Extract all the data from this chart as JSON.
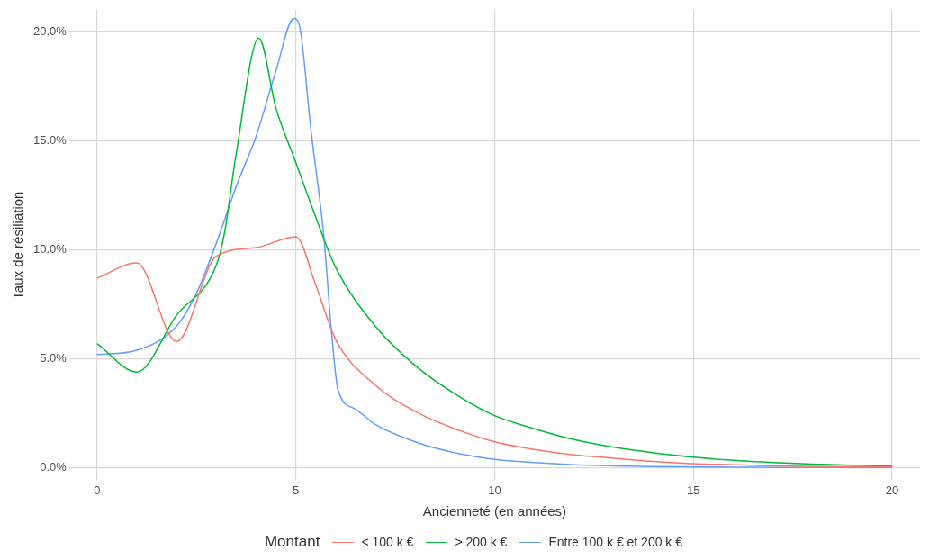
{
  "chart_data": {
    "type": "line",
    "xlabel": "Ancienneté (en années)",
    "ylabel": "Taux de résiliation",
    "legend_title": "Montant",
    "legend": "bottom",
    "grid": true,
    "marker": "none",
    "line_style": "solid",
    "xlim": [
      -0.7,
      20.7
    ],
    "xticks": [
      0,
      5,
      10,
      15,
      20
    ],
    "ylim": [
      -0.6,
      21.0
    ],
    "yticks": [
      {
        "value": 0,
        "label": "0.0%"
      },
      {
        "value": 5,
        "label": "5.0%"
      },
      {
        "value": 10,
        "label": "10.0%"
      },
      {
        "value": 15,
        "label": "15.0%"
      },
      {
        "value": 20,
        "label": "20.0%"
      }
    ],
    "series": [
      {
        "name": "< 100 k €",
        "color": "#f8766d",
        "x": [
          0,
          1,
          2,
          3,
          4,
          5,
          5.5,
          6,
          7,
          8,
          9,
          10,
          11,
          12,
          13,
          14,
          15,
          16,
          17,
          18,
          19,
          20
        ],
        "values": [
          8.7,
          9.4,
          5.8,
          9.7,
          10.1,
          10.6,
          8.4,
          5.9,
          3.8,
          2.6,
          1.8,
          1.2,
          0.85,
          0.6,
          0.45,
          0.3,
          0.2,
          0.15,
          0.1,
          0.08,
          0.06,
          0.05
        ]
      },
      {
        "name": "> 200 k €",
        "color": "#00ba38",
        "x": [
          0,
          1,
          2,
          3,
          3.2,
          3.5,
          4.07,
          4.5,
          5,
          5.5,
          6,
          7,
          8,
          9,
          10,
          11,
          12,
          13,
          14,
          15,
          16,
          17,
          18,
          19,
          20
        ],
        "values": [
          5.7,
          4.4,
          7.0,
          9.3,
          10.7,
          14.4,
          19.7,
          16.5,
          14.0,
          11.5,
          9.2,
          6.5,
          4.7,
          3.4,
          2.4,
          1.8,
          1.3,
          0.95,
          0.7,
          0.5,
          0.35,
          0.25,
          0.18,
          0.13,
          0.1
        ]
      },
      {
        "name": "Entre 100 k € et 200 k €",
        "color": "#619cff",
        "x": [
          0,
          1,
          2,
          2.5,
          3,
          3.5,
          4,
          4.5,
          4.95,
          5.1,
          5.38,
          5.7,
          5.9,
          6.06,
          6.5,
          7,
          8,
          9,
          10,
          11,
          12,
          13,
          14,
          15,
          16,
          17,
          18,
          19,
          20
        ],
        "values": [
          5.2,
          5.4,
          6.5,
          8.0,
          10.3,
          12.9,
          15.2,
          18.2,
          20.6,
          20.2,
          15.5,
          10.7,
          6.2,
          3.6,
          2.7,
          2.0,
          1.2,
          0.7,
          0.4,
          0.25,
          0.15,
          0.1,
          0.07,
          0.05,
          0.04,
          0.03,
          0.03,
          0.02,
          0.02
        ]
      }
    ]
  }
}
